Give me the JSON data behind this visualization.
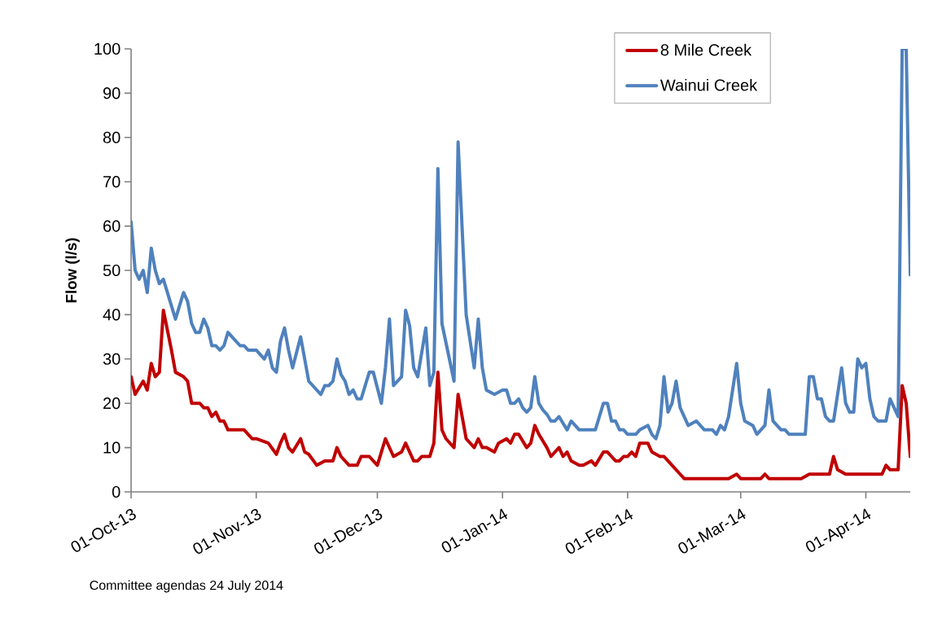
{
  "chart_data": {
    "type": "line",
    "ylabel": "Flow (l/s)",
    "annotations": [
      "Committee agendas 24 July 2014"
    ],
    "xlim": [
      "2013-10-01",
      "2014-04-12"
    ],
    "xticks": [
      {
        "value": "2013-10-01",
        "label": "01-Oct-13"
      },
      {
        "value": "2013-11-01",
        "label": "01-Nov-13"
      },
      {
        "value": "2013-12-01",
        "label": "01-Dec-13"
      },
      {
        "value": "2014-01-01",
        "label": "01-Jan-14"
      },
      {
        "value": "2014-02-01",
        "label": "01-Feb-14"
      },
      {
        "value": "2014-03-01",
        "label": "01-Mar-14"
      },
      {
        "value": "2014-04-01",
        "label": "01-Apr-14"
      }
    ],
    "ylim": [
      0,
      100
    ],
    "yticks": [
      0,
      10,
      20,
      30,
      40,
      50,
      60,
      70,
      80,
      90,
      100
    ],
    "legend": "top right",
    "series": [
      {
        "name": "8 Mile Creek",
        "color": "#c00000",
        "x": [
          "2013-10-01",
          "2013-10-02",
          "2013-10-04",
          "2013-10-05",
          "2013-10-06",
          "2013-10-07",
          "2013-10-08",
          "2013-10-09",
          "2013-10-11",
          "2013-10-12",
          "2013-10-14",
          "2013-10-15",
          "2013-10-16",
          "2013-10-18",
          "2013-10-19",
          "2013-10-20",
          "2013-10-21",
          "2013-10-22",
          "2013-10-23",
          "2013-10-24",
          "2013-10-25",
          "2013-10-29",
          "2013-10-30",
          "2013-10-31",
          "2013-11-01",
          "2013-11-04",
          "2013-11-06",
          "2013-11-07",
          "2013-11-08",
          "2013-11-09",
          "2013-11-10",
          "2013-11-12",
          "2013-11-13",
          "2013-11-14",
          "2013-11-16",
          "2013-11-18",
          "2013-11-20",
          "2013-11-21",
          "2013-11-22",
          "2013-11-24",
          "2013-11-26",
          "2013-11-27",
          "2013-11-29",
          "2013-12-01",
          "2013-12-03",
          "2013-12-05",
          "2013-12-07",
          "2013-12-08",
          "2013-12-10",
          "2013-12-11",
          "2013-12-12",
          "2013-12-14",
          "2013-12-15",
          "2013-12-16",
          "2013-12-17",
          "2013-12-18",
          "2013-12-20",
          "2013-12-21",
          "2013-12-23",
          "2013-12-24",
          "2013-12-25",
          "2013-12-26",
          "2013-12-27",
          "2013-12-28",
          "2013-12-30",
          "2013-12-31",
          "2014-01-02",
          "2014-01-03",
          "2014-01-04",
          "2014-01-05",
          "2014-01-07",
          "2014-01-08",
          "2014-01-09",
          "2014-01-10",
          "2014-01-12",
          "2014-01-13",
          "2014-01-15",
          "2014-01-16",
          "2014-01-17",
          "2014-01-18",
          "2014-01-20",
          "2014-01-21",
          "2014-01-23",
          "2014-01-24",
          "2014-01-26",
          "2014-01-27",
          "2014-01-28",
          "2014-01-29",
          "2014-01-30",
          "2014-01-31",
          "2014-02-01",
          "2014-02-02",
          "2014-02-03",
          "2014-02-04",
          "2014-02-05",
          "2014-02-06",
          "2014-02-07",
          "2014-02-09",
          "2014-02-10",
          "2014-02-11",
          "2014-02-12",
          "2014-02-14",
          "2014-02-15",
          "2014-02-26",
          "2014-02-28",
          "2014-03-01",
          "2014-03-06",
          "2014-03-07",
          "2014-03-08",
          "2014-03-16",
          "2014-03-18",
          "2014-03-23",
          "2014-03-24",
          "2014-03-25",
          "2014-03-27",
          "2014-04-05",
          "2014-04-06",
          "2014-04-07",
          "2014-04-09",
          "2014-04-10",
          "2014-04-11",
          "2014-04-12"
        ],
        "values": [
          26,
          22,
          25,
          23,
          29,
          26,
          27,
          41,
          32,
          27,
          26,
          25,
          20,
          20,
          19,
          19,
          17,
          18,
          16,
          16,
          14,
          14,
          13,
          12,
          12,
          11,
          8.5,
          11,
          13,
          10,
          9,
          12,
          9,
          8.5,
          6,
          7,
          7,
          10,
          8,
          6,
          6,
          8,
          8,
          6,
          12,
          8,
          9,
          11,
          7,
          7,
          8,
          8,
          11,
          27,
          14,
          12,
          10,
          22,
          12,
          11,
          10,
          12,
          10,
          10,
          9,
          11,
          12,
          11,
          13,
          13,
          10,
          11,
          15,
          13,
          10,
          8,
          10,
          8,
          9,
          7,
          6,
          6,
          7,
          6,
          9,
          9,
          8,
          7,
          7,
          8,
          8,
          9,
          8,
          11,
          11,
          11,
          9,
          8,
          8,
          7,
          6,
          4,
          3,
          3,
          4,
          3,
          3,
          4,
          3,
          3,
          4,
          4,
          8,
          5,
          4,
          4,
          6,
          5,
          5,
          24,
          20,
          8
        ]
      },
      {
        "name": "Wainui Creek",
        "color": "#4f81bd",
        "x": [
          "2013-10-01",
          "2013-10-02",
          "2013-10-03",
          "2013-10-04",
          "2013-10-05",
          "2013-10-06",
          "2013-10-07",
          "2013-10-08",
          "2013-10-09",
          "2013-10-12",
          "2013-10-14",
          "2013-10-15",
          "2013-10-16",
          "2013-10-17",
          "2013-10-18",
          "2013-10-19",
          "2013-10-20",
          "2013-10-21",
          "2013-10-22",
          "2013-10-23",
          "2013-10-24",
          "2013-10-25",
          "2013-10-26",
          "2013-10-28",
          "2013-10-29",
          "2013-10-30",
          "2013-11-01",
          "2013-11-03",
          "2013-11-04",
          "2013-11-05",
          "2013-11-06",
          "2013-11-07",
          "2013-11-08",
          "2013-11-09",
          "2013-11-10",
          "2013-11-12",
          "2013-11-14",
          "2013-11-17",
          "2013-11-18",
          "2013-11-19",
          "2013-11-20",
          "2013-11-21",
          "2013-11-22",
          "2013-11-23",
          "2013-11-24",
          "2013-11-25",
          "2013-11-26",
          "2013-11-27",
          "2013-11-28",
          "2013-11-29",
          "2013-11-30",
          "2013-12-02",
          "2013-12-03",
          "2013-12-04",
          "2013-12-05",
          "2013-12-07",
          "2013-12-08",
          "2013-12-09",
          "2013-12-10",
          "2013-12-11",
          "2013-12-13",
          "2013-12-14",
          "2013-12-15",
          "2013-12-16",
          "2013-12-17",
          "2013-12-20",
          "2013-12-21",
          "2013-12-23",
          "2013-12-25",
          "2013-12-26",
          "2013-12-27",
          "2013-12-28",
          "2013-12-30",
          "2014-01-01",
          "2014-01-02",
          "2014-01-03",
          "2014-01-04",
          "2014-01-05",
          "2014-01-06",
          "2014-01-07",
          "2014-01-08",
          "2014-01-09",
          "2014-01-10",
          "2014-01-11",
          "2014-01-12",
          "2014-01-13",
          "2014-01-14",
          "2014-01-15",
          "2014-01-16",
          "2014-01-17",
          "2014-01-18",
          "2014-01-19",
          "2014-01-20",
          "2014-01-24",
          "2014-01-26",
          "2014-01-27",
          "2014-01-28",
          "2014-01-29",
          "2014-01-30",
          "2014-01-31",
          "2014-02-01",
          "2014-02-03",
          "2014-02-04",
          "2014-02-06",
          "2014-02-07",
          "2014-02-08",
          "2014-02-09",
          "2014-02-10",
          "2014-02-11",
          "2014-02-12",
          "2014-02-13",
          "2014-02-14",
          "2014-02-16",
          "2014-02-18",
          "2014-02-20",
          "2014-02-22",
          "2014-02-23",
          "2014-02-24",
          "2014-02-25",
          "2014-02-26",
          "2014-02-28",
          "2014-03-01",
          "2014-03-02",
          "2014-03-04",
          "2014-03-05",
          "2014-03-07",
          "2014-03-08",
          "2014-03-09",
          "2014-03-11",
          "2014-03-12",
          "2014-03-13",
          "2014-03-17",
          "2014-03-18",
          "2014-03-19",
          "2014-03-20",
          "2014-03-21",
          "2014-03-22",
          "2014-03-23",
          "2014-03-24",
          "2014-03-26",
          "2014-03-27",
          "2014-03-28",
          "2014-03-29",
          "2014-03-30",
          "2014-03-31",
          "2014-04-01",
          "2014-04-02",
          "2014-04-03",
          "2014-04-04",
          "2014-04-05",
          "2014-04-06",
          "2014-04-07",
          "2014-04-09",
          "2014-04-10",
          "2014-04-11",
          "2014-04-12"
        ],
        "values": [
          61,
          50,
          48,
          50,
          45,
          55,
          50,
          47,
          48,
          39,
          45,
          43,
          38,
          36,
          36,
          39,
          37,
          33,
          33,
          32,
          33,
          36,
          35,
          33,
          33,
          32,
          32,
          30,
          32,
          28,
          27,
          34,
          37,
          32,
          28,
          35,
          25,
          22,
          24,
          24,
          25,
          30,
          26.5,
          25,
          22,
          23,
          21,
          21,
          24,
          27,
          27,
          20,
          28,
          39,
          24,
          26,
          41,
          37.5,
          28,
          26,
          37,
          24,
          27,
          73,
          38,
          25,
          79,
          40,
          28,
          39,
          28,
          23,
          22,
          23,
          23,
          20,
          20,
          21,
          19,
          18,
          19,
          26,
          20,
          18.5,
          17.5,
          16,
          16,
          17,
          15.5,
          14,
          16,
          15,
          14,
          14,
          20,
          20,
          16,
          16,
          14,
          14,
          13,
          13,
          14,
          15,
          13,
          12,
          15,
          26,
          18,
          20,
          25,
          19,
          15,
          16,
          14,
          14,
          13,
          15,
          14,
          17,
          29,
          20,
          16,
          15,
          13,
          15,
          23,
          16,
          14,
          14,
          13,
          13,
          26,
          26,
          21,
          21,
          17,
          16,
          16,
          28,
          20,
          18,
          18,
          30,
          28,
          29,
          21,
          17,
          16,
          16,
          16,
          21,
          17,
          100,
          100,
          49
        ]
      }
    ]
  }
}
